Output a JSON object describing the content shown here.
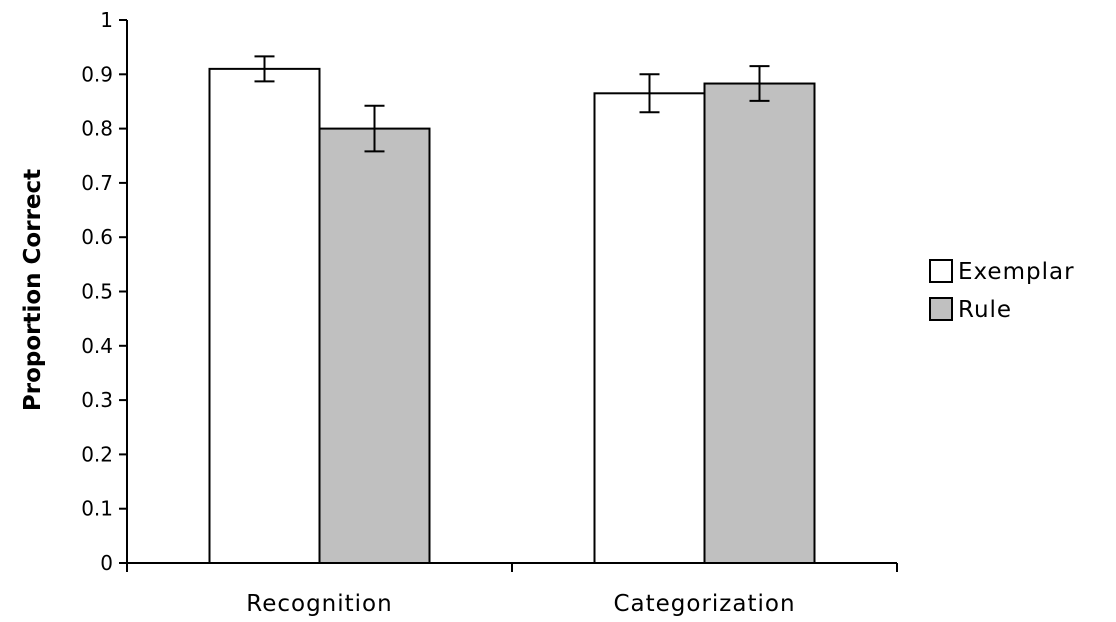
{
  "chart_data": {
    "type": "bar",
    "title": "",
    "xlabel": "",
    "ylabel": "Proportion Correct",
    "categories": [
      "Recognition",
      "Categorization"
    ],
    "series": [
      {
        "name": "Exemplar",
        "values": [
          0.91,
          0.865
        ],
        "errors": [
          0.023,
          0.035
        ],
        "color": "#ffffff"
      },
      {
        "name": "Rule",
        "values": [
          0.8,
          0.883
        ],
        "errors": [
          0.042,
          0.032
        ],
        "color": "#c0c0c0"
      }
    ],
    "ylim": [
      0,
      1
    ],
    "yticks": [
      "0",
      "0.1",
      "0.2",
      "0.3",
      "0.4",
      "0.5",
      "0.6",
      "0.7",
      "0.8",
      "0.9",
      "1"
    ],
    "grid": false,
    "legend_position": "right"
  }
}
